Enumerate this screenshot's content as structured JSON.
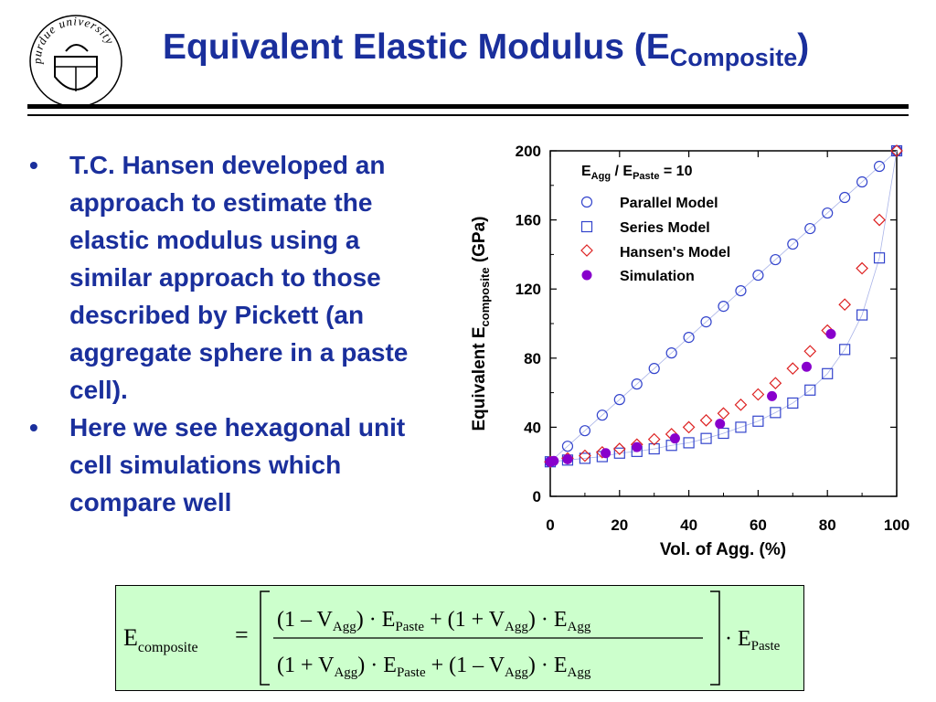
{
  "slide": {
    "title_main": "Equivalent Elastic Modulus (E",
    "title_sub": "Composite",
    "title_close": ")",
    "logo_text": "purdue university",
    "bullet_glyph": "•",
    "bullets": [
      "T.C. Hansen developed an approach to estimate the elastic modulus using a similar approach to those described by Pickett (an aggregate sphere in a paste cell).",
      "Here we see hexagonal unit cell simulations which compare well"
    ]
  },
  "chart_data": {
    "type": "scatter",
    "annotation": {
      "E": "E",
      "agg": "Agg",
      "slash": " / E",
      "paste": "Paste",
      "rest": " = 10"
    },
    "xlabel": "Vol. of Agg. (%)",
    "ylabel_main": "Equivalent E",
    "ylabel_sub": "composite",
    "ylabel_unit": " (GPa)",
    "xlim": [
      0,
      100
    ],
    "ylim": [
      0,
      200
    ],
    "xticks": [
      0,
      20,
      40,
      60,
      80,
      100
    ],
    "yticks": [
      0,
      40,
      80,
      120,
      160,
      200
    ],
    "legend_position": "top-left",
    "series": [
      {
        "name": "Parallel Model",
        "marker": "circle-open",
        "color": "#3344cc",
        "x": [
          0,
          5,
          10,
          15,
          20,
          25,
          30,
          35,
          40,
          45,
          50,
          55,
          60,
          65,
          70,
          75,
          80,
          85,
          90,
          95,
          100
        ],
        "y": [
          20,
          29,
          38,
          47,
          56,
          65,
          74,
          83,
          92,
          101,
          110,
          119,
          128,
          137,
          146,
          155,
          164,
          173,
          182,
          191,
          200
        ]
      },
      {
        "name": "Series Model",
        "marker": "square-open",
        "color": "#3344cc",
        "x": [
          0,
          5,
          10,
          15,
          20,
          25,
          30,
          35,
          40,
          45,
          50,
          55,
          60,
          65,
          70,
          75,
          80,
          85,
          90,
          95,
          100
        ],
        "y": [
          20,
          21,
          22,
          23,
          25,
          26,
          27.5,
          29.5,
          31,
          33.5,
          36.5,
          40,
          43.5,
          48.5,
          54,
          61.5,
          71,
          85,
          105,
          138,
          200
        ]
      },
      {
        "name": "Hansen's Model",
        "marker": "diamond-open",
        "color": "#dd2222",
        "x": [
          0,
          5,
          10,
          15,
          20,
          25,
          30,
          35,
          40,
          45,
          50,
          55,
          60,
          65,
          70,
          75,
          80,
          85,
          90,
          95,
          100
        ],
        "y": [
          20,
          22,
          23.5,
          25.5,
          27.5,
          30,
          33,
          36,
          40,
          44,
          48,
          53,
          59,
          65.5,
          74,
          84,
          96,
          111,
          132,
          160,
          200
        ]
      },
      {
        "name": "Simulation",
        "marker": "circle-filled",
        "color": "#8800cc",
        "x": [
          0,
          1,
          5,
          16,
          25,
          36,
          49,
          64,
          74,
          81
        ],
        "y": [
          20,
          20.5,
          21.5,
          25,
          28.5,
          33.5,
          42,
          58,
          75,
          94
        ]
      }
    ]
  },
  "formula": {
    "lhs": "E",
    "lhs_sub": "composite",
    "eq": "=",
    "num": {
      "a": "(1 – V",
      "a_sub": "Agg",
      "b": ") · E",
      "b_sub": "Paste",
      "c": " + (1 + V",
      "c_sub": "Agg",
      "d": ") · E",
      "d_sub": "Agg"
    },
    "den": {
      "a": "(1 + V",
      "a_sub": "Agg",
      "b": ") · E",
      "b_sub": "Paste",
      "c": " + (1 – V",
      "c_sub": "Agg",
      "d": ") · E",
      "d_sub": "Agg"
    },
    "tail": "· E",
    "tail_sub": "Paste"
  }
}
